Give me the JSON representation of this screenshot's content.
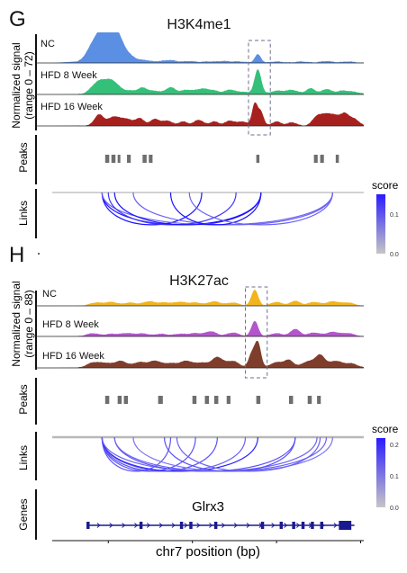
{
  "chart_data": [
    {
      "panel_label": "G",
      "type": "area",
      "title": "H3K4me1",
      "ylabel": [
        "Normalized signal",
        "(range 0 – 72)"
      ],
      "ylim": [
        0,
        72
      ],
      "x_domain": [
        0,
        100
      ],
      "highlight_region": [
        63,
        70
      ],
      "tracks": [
        {
          "name": "NC",
          "color": "#5B8FE3",
          "peaks": [
            [
              13,
              18,
              2.2
            ],
            [
              15,
              28,
              3.0
            ],
            [
              17,
              43,
              2.5
            ],
            [
              19,
              35,
              2.2
            ],
            [
              21,
              30,
              2.0
            ],
            [
              23,
              14,
              2.0
            ],
            [
              26,
              9,
              2.0
            ],
            [
              30,
              5,
              1.5
            ],
            [
              34,
              3,
              2.0
            ],
            [
              38,
              6,
              2.0
            ],
            [
              44,
              4,
              2.0
            ],
            [
              50,
              3,
              2.0
            ],
            [
              55,
              4,
              2.0
            ],
            [
              60,
              3,
              2.0
            ],
            [
              66,
              20,
              1.0
            ],
            [
              72,
              3,
              2.0
            ],
            [
              80,
              3,
              2.0
            ],
            [
              88,
              4,
              2.0
            ],
            [
              95,
              3,
              2.0
            ]
          ]
        },
        {
          "name": "HFD 8 Week",
          "color": "#35C07A",
          "peaks": [
            [
              14,
              16,
              2.0
            ],
            [
              17,
              25,
              2.5
            ],
            [
              20,
              18,
              2.0
            ],
            [
              25,
              8,
              2.0
            ],
            [
              29,
              14,
              1.5
            ],
            [
              33,
              8,
              2.0
            ],
            [
              38,
              16,
              1.5
            ],
            [
              43,
              10,
              2.0
            ],
            [
              48,
              12,
              2.0
            ],
            [
              52,
              8,
              2.0
            ],
            [
              57,
              10,
              1.5
            ],
            [
              61,
              6,
              2.0
            ],
            [
              66,
              58,
              1.1
            ],
            [
              72,
              8,
              2.0
            ],
            [
              77,
              10,
              2.0
            ],
            [
              83,
              14,
              1.5
            ],
            [
              88,
              12,
              1.5
            ],
            [
              93,
              8,
              2.0
            ],
            [
              97,
              5,
              2.0
            ]
          ]
        },
        {
          "name": "HFD 16 Week",
          "color": "#A6211E",
          "peaks": [
            [
              15,
              26,
              1.5
            ],
            [
              20,
              22,
              2.0
            ],
            [
              24,
              14,
              1.5
            ],
            [
              28,
              18,
              1.5
            ],
            [
              33,
              16,
              1.5
            ],
            [
              37,
              12,
              1.5
            ],
            [
              42,
              10,
              1.5
            ],
            [
              47,
              14,
              1.5
            ],
            [
              52,
              10,
              1.5
            ],
            [
              57,
              12,
              1.5
            ],
            [
              61,
              10,
              1.5
            ],
            [
              65,
              52,
              0.9
            ],
            [
              67,
              32,
              0.9
            ],
            [
              72,
              10,
              1.5
            ],
            [
              77,
              8,
              1.5
            ],
            [
              85,
              22,
              1.5
            ],
            [
              88,
              24,
              1.5
            ],
            [
              91,
              22,
              1.5
            ],
            [
              94,
              26,
              1.3
            ],
            [
              97,
              16,
              1.5
            ]
          ]
        }
      ],
      "peaks_track": {
        "label": "Peaks",
        "regions": [
          [
            17,
            18.3
          ],
          [
            19,
            20.3
          ],
          [
            21,
            21.8
          ],
          [
            24,
            25.2
          ],
          [
            29,
            30.3
          ],
          [
            31,
            32.2
          ],
          [
            65.5,
            66.5
          ],
          [
            84,
            85.2
          ],
          [
            86,
            87.2
          ],
          [
            91,
            92
          ]
        ]
      },
      "links_track": {
        "label": "Links",
        "links": [
          [
            16,
            48,
            0.15
          ],
          [
            16,
            67,
            0.15
          ],
          [
            16,
            90,
            0.08
          ],
          [
            18,
            59,
            0.12
          ],
          [
            20,
            67,
            0.15
          ],
          [
            26,
            90,
            0.08
          ],
          [
            38,
            67,
            0.15
          ],
          [
            44,
            90,
            0.08
          ]
        ],
        "legend": {
          "title": "score",
          "ticks": [
            0.0,
            0.1
          ],
          "min": 0.0,
          "max": 0.15
        }
      }
    },
    {
      "panel_label": "H",
      "type": "area",
      "title": "H3K27ac",
      "ylabel": [
        "Normalized signal",
        "(range 0 – 88)"
      ],
      "ylim": [
        0,
        88
      ],
      "x_domain": [
        0,
        100
      ],
      "highlight_region": [
        62,
        69
      ],
      "tracks": [
        {
          "name": "NC",
          "color": "#F1B41B",
          "peaks": [
            [
              14,
              10,
              2.0
            ],
            [
              19,
              12,
              2.0
            ],
            [
              25,
              10,
              2.0
            ],
            [
              31,
              14,
              2.0
            ],
            [
              36,
              10,
              2.0
            ],
            [
              41,
              12,
              2.0
            ],
            [
              46,
              10,
              2.0
            ],
            [
              52,
              14,
              2.0
            ],
            [
              58,
              10,
              2.0
            ],
            [
              65,
              52,
              1.1
            ],
            [
              72,
              12,
              2.0
            ],
            [
              78,
              16,
              1.5
            ],
            [
              84,
              12,
              2.0
            ],
            [
              90,
              14,
              2.0
            ],
            [
              95,
              10,
              2.0
            ]
          ]
        },
        {
          "name": "HFD 8 Week",
          "color": "#B356CC",
          "peaks": [
            [
              13,
              10,
              2.0
            ],
            [
              19,
              8,
              2.0
            ],
            [
              24,
              10,
              2.0
            ],
            [
              29,
              9,
              2.0
            ],
            [
              35,
              8,
              2.0
            ],
            [
              41,
              8,
              2.0
            ],
            [
              46,
              10,
              2.0
            ],
            [
              51,
              16,
              1.8
            ],
            [
              58,
              12,
              2.0
            ],
            [
              65,
              50,
              1.1
            ],
            [
              72,
              10,
              2.0
            ],
            [
              78,
              24,
              1.5
            ],
            [
              84,
              12,
              2.0
            ],
            [
              90,
              14,
              2.0
            ],
            [
              95,
              10,
              2.0
            ]
          ]
        },
        {
          "name": "HFD 16 Week",
          "color": "#7F3E2C",
          "peaks": [
            [
              13,
              16,
              2.0
            ],
            [
              17,
              14,
              2.0
            ],
            [
              22,
              22,
              2.0
            ],
            [
              28,
              18,
              2.0
            ],
            [
              33,
              22,
              2.0
            ],
            [
              38,
              14,
              2.0
            ],
            [
              43,
              22,
              2.0
            ],
            [
              48,
              16,
              2.0
            ],
            [
              53,
              34,
              1.8
            ],
            [
              58,
              22,
              2.0
            ],
            [
              64,
              44,
              1.0
            ],
            [
              66,
              82,
              1.0
            ],
            [
              72,
              18,
              2.0
            ],
            [
              76,
              24,
              1.5
            ],
            [
              82,
              20,
              2.0
            ],
            [
              86,
              40,
              1.6
            ],
            [
              91,
              22,
              2.0
            ],
            [
              96,
              14,
              2.0
            ]
          ]
        }
      ],
      "peaks_track": {
        "label": "Peaks",
        "regions": [
          [
            17,
            18.3
          ],
          [
            21,
            22.3
          ],
          [
            23,
            24.3
          ],
          [
            34,
            35.5
          ],
          [
            45,
            46.3
          ],
          [
            49,
            50.3
          ],
          [
            52,
            53.3
          ],
          [
            56,
            57.2
          ],
          [
            65.5,
            66.8
          ],
          [
            76,
            77.3
          ],
          [
            82,
            83.3
          ],
          [
            85,
            86.2
          ]
        ]
      },
      "links_track": {
        "label": "Links",
        "links": [
          [
            16,
            38,
            0.14
          ],
          [
            16,
            46,
            0.14
          ],
          [
            16,
            53,
            0.14
          ],
          [
            16,
            62,
            0.12
          ],
          [
            16,
            66,
            0.2
          ],
          [
            16,
            85,
            0.12
          ],
          [
            20,
            78,
            0.14
          ],
          [
            20,
            88,
            0.12
          ],
          [
            26,
            90,
            0.1
          ],
          [
            36,
            78,
            0.14
          ],
          [
            40,
            86,
            0.12
          ]
        ],
        "legend": {
          "title": "score",
          "ticks": [
            0.0,
            0.1,
            0.2
          ],
          "min": 0.0,
          "max": 0.22
        }
      }
    },
    {
      "type": "gene",
      "track_label": "Genes",
      "gene": {
        "name": "Glrx3",
        "start": 11,
        "end": 97,
        "exons": [
          [
            11,
            12
          ],
          [
            28,
            29
          ],
          [
            41,
            42
          ],
          [
            44,
            45
          ],
          [
            52,
            53
          ],
          [
            67,
            68
          ],
          [
            73,
            74
          ],
          [
            77,
            78
          ],
          [
            80,
            81
          ],
          [
            83,
            84
          ],
          [
            86,
            87
          ],
          [
            92,
            96
          ]
        ]
      },
      "xlabel": "chr7 position (bp)"
    }
  ]
}
